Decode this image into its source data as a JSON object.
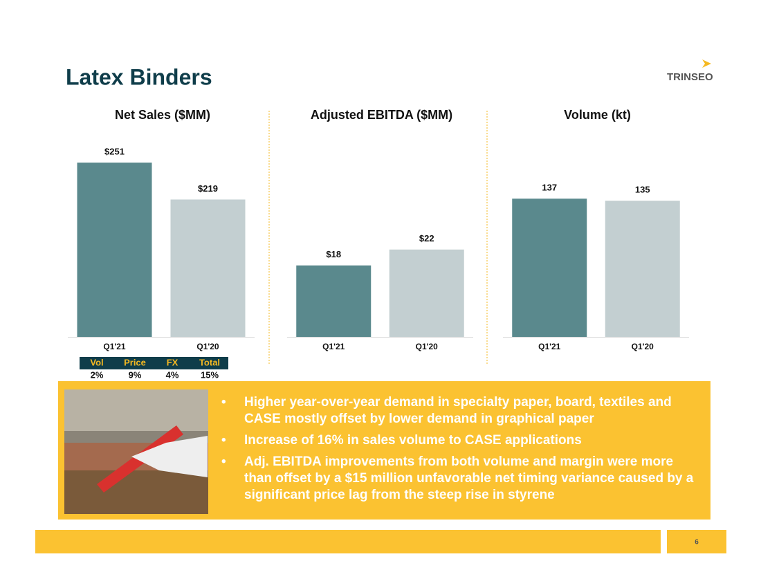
{
  "header": {
    "title": "Latex Binders",
    "logo": "TRINSEO"
  },
  "chart_data": [
    {
      "type": "bar",
      "title": "Net Sales ($MM)",
      "categories": [
        "Q1'21",
        "Q1'20"
      ],
      "values": [
        251,
        219
      ],
      "value_labels": [
        "$251",
        "$219"
      ],
      "colors": [
        "#5a898d",
        "#c3cfd1"
      ],
      "ylim": [
        100,
        272
      ]
    },
    {
      "type": "bar",
      "title": "Adjusted EBITDA ($MM)",
      "categories": [
        "Q1'21",
        "Q1'20"
      ],
      "values": [
        18,
        22
      ],
      "value_labels": [
        "$18",
        "$22"
      ],
      "colors": [
        "#5a898d",
        "#c3cfd1"
      ],
      "ylim": [
        0,
        50
      ]
    },
    {
      "type": "bar",
      "title": "Volume (kt)",
      "categories": [
        "Q1'21",
        "Q1'20"
      ],
      "values": [
        137,
        135
      ],
      "colors": [
        "#5a898d",
        "#c3cfd1"
      ],
      "ylim": [
        4,
        195
      ]
    }
  ],
  "table": {
    "header": [
      "Vol",
      "Price",
      "FX",
      "Total"
    ],
    "row": [
      "2%",
      "9%",
      "4%",
      "15%"
    ]
  },
  "bullets": [
    "Higher year-over-year demand in specialty paper, board, textiles and CASE mostly offset by lower demand in graphical paper",
    "Increase of 16% in sales volume to CASE applications",
    "Adj. EBITDA improvements from both volume and margin were more than offset by a $15 million unfavorable net timing variance caused by a significant price lag from the steep rise in styrene"
  ],
  "footer": {
    "page": "6"
  }
}
